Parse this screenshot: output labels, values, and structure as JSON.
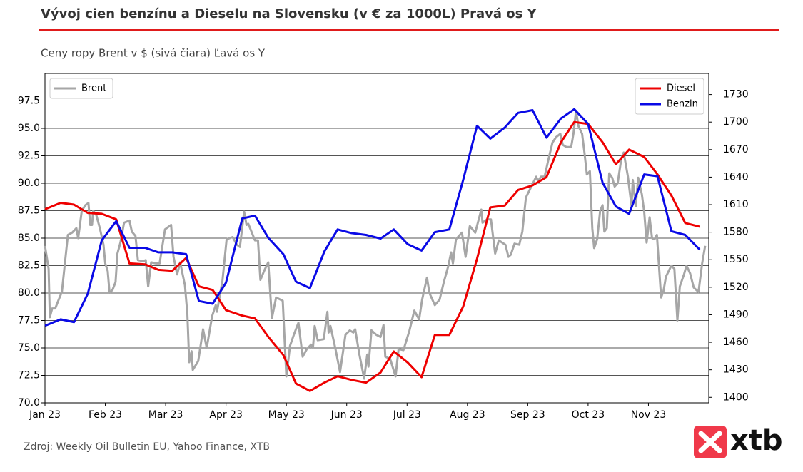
{
  "chart_data": {
    "type": "line",
    "title": "Vývoj cien benzínu a Dieselu na Slovensku (v € za 1000L) Pravá os Y",
    "subtitle": "Ceny ropy Brent v $ (sivá čiara) Ľavá os Y",
    "source": "Zdroj: Weekly Oil Bulletin EU, Yahoo Finance, XTB",
    "logo": "xtb",
    "xlim": [
      0,
      11
    ],
    "xticks": [
      {
        "value": 0,
        "label": "Jan 23"
      },
      {
        "value": 1,
        "label": "Feb 23"
      },
      {
        "value": 2,
        "label": "Mar 23"
      },
      {
        "value": 3,
        "label": "Apr 23"
      },
      {
        "value": 4,
        "label": "May 23"
      },
      {
        "value": 5,
        "label": "Jun 23"
      },
      {
        "value": 6,
        "label": "Jul 23"
      },
      {
        "value": 7,
        "label": "Aug 23"
      },
      {
        "value": 8,
        "label": "Sep 23"
      },
      {
        "value": 9,
        "label": "Oct 23"
      },
      {
        "value": 10,
        "label": "Nov 23"
      }
    ],
    "ylim": [
      70,
      100
    ],
    "yticks": [
      {
        "value": 70,
        "label": "70.0"
      },
      72.5,
      {
        "value": 75,
        "label": "75.0"
      },
      77.5,
      {
        "value": 80,
        "label": "80.0"
      },
      82.5,
      {
        "value": 85,
        "label": "85.0"
      },
      87.5,
      {
        "value": 90,
        "label": "90.0"
      },
      92.5,
      {
        "value": 95,
        "label": "95.0"
      },
      97.5
    ],
    "y2lim": [
      1394,
      1753
    ],
    "y2ticks": [
      1400,
      1430,
      1460,
      1490,
      1520,
      1550,
      1580,
      1610,
      1640,
      1670,
      1700,
      1730
    ],
    "grid": true,
    "legend": "upper left",
    "legend2": "upper right",
    "series": [
      {
        "name": "Brent",
        "color": "#a6a6a6",
        "axis": "y",
        "x": [
          0.0,
          0.06,
          0.08,
          0.12,
          0.17,
          0.22,
          0.28,
          0.33,
          0.38,
          0.45,
          0.52,
          0.55,
          0.61,
          0.67,
          0.72,
          0.75,
          0.78,
          0.8,
          0.85,
          0.91,
          0.97,
          1.0,
          1.04,
          1.07,
          1.12,
          1.17,
          1.2,
          1.25,
          1.31,
          1.4,
          1.44,
          1.5,
          1.54,
          1.63,
          1.67,
          1.71,
          1.76,
          1.84,
          1.9,
          1.99,
          2.09,
          2.13,
          2.19,
          2.24,
          2.32,
          2.36,
          2.39,
          2.43,
          2.45,
          2.54,
          2.62,
          2.68,
          2.77,
          2.83,
          2.85,
          2.94,
          3.01,
          3.11,
          3.18,
          3.23,
          3.3,
          3.34,
          3.37,
          3.48,
          3.53,
          3.57,
          3.63,
          3.7,
          3.76,
          3.83,
          3.94,
          4.0,
          4.06,
          4.13,
          4.2,
          4.27,
          4.34,
          4.41,
          4.44,
          4.47,
          4.52,
          4.62,
          4.68,
          4.7,
          4.73,
          4.81,
          4.89,
          4.98,
          5.05,
          5.11,
          5.14,
          5.21,
          5.29,
          5.34,
          5.36,
          5.41,
          5.49,
          5.56,
          5.61,
          5.64,
          5.72,
          5.81,
          5.86,
          5.94,
          6.04,
          6.12,
          6.2,
          6.25,
          6.33,
          6.37,
          6.46,
          6.54,
          6.61,
          6.68,
          6.73,
          6.76,
          6.81,
          6.91,
          6.97,
          7.04,
          7.13,
          7.23,
          7.25,
          7.32,
          7.39,
          7.46,
          7.52,
          7.63,
          7.68,
          7.72,
          7.78,
          7.86,
          7.91,
          7.97,
          8.06,
          8.14,
          8.17,
          8.22,
          8.28,
          8.34,
          8.41,
          8.47,
          8.54,
          8.58,
          8.64,
          8.72,
          8.76,
          8.8,
          8.84,
          8.9,
          8.94,
          8.98,
          9.03,
          9.07,
          9.1,
          9.15,
          9.2,
          9.24,
          9.27,
          9.31,
          9.35,
          9.4,
          9.44,
          9.49,
          9.55,
          9.59,
          9.66,
          9.72,
          9.74,
          9.79,
          9.83,
          9.89,
          9.93,
          9.97,
          10.02,
          10.06,
          10.1,
          10.14,
          10.21,
          10.25,
          10.29,
          10.38,
          10.43,
          10.48,
          10.52,
          10.59,
          10.63,
          10.69,
          10.75,
          10.83,
          10.89,
          10.94
        ],
        "values": [
          84.3,
          82.2,
          77.8,
          78.6,
          78.6,
          79.3,
          80.1,
          82.7,
          85.3,
          85.5,
          85.9,
          85.0,
          87.5,
          88.0,
          88.2,
          86.2,
          86.2,
          87.5,
          87.1,
          85.9,
          84.4,
          82.7,
          82.0,
          80.0,
          80.3,
          81.0,
          83.6,
          84.6,
          86.4,
          86.6,
          85.6,
          85.2,
          83.0,
          82.9,
          83.0,
          80.6,
          82.8,
          82.7,
          82.7,
          85.8,
          86.2,
          83.3,
          81.7,
          82.8,
          80.7,
          78.1,
          73.7,
          74.7,
          73.0,
          73.8,
          76.7,
          75.0,
          77.9,
          78.9,
          78.3,
          81.1,
          84.9,
          85.1,
          84.4,
          84.2,
          87.4,
          86.2,
          86.3,
          84.8,
          84.8,
          81.2,
          82.0,
          82.8,
          77.7,
          79.6,
          79.3,
          72.4,
          75.2,
          76.3,
          77.3,
          74.2,
          74.9,
          75.3,
          75.0,
          77.0,
          75.7,
          75.8,
          78.3,
          76.4,
          77.0,
          75.0,
          72.8,
          76.2,
          76.6,
          76.4,
          76.7,
          74.4,
          72.2,
          74.4,
          73.3,
          76.6,
          76.2,
          76.0,
          77.1,
          74.2,
          74.0,
          72.4,
          74.9,
          74.8,
          76.6,
          78.4,
          77.6,
          79.4,
          81.4,
          80.0,
          78.9,
          79.4,
          81.0,
          82.4,
          83.7,
          82.7,
          84.9,
          85.5,
          83.3,
          86.1,
          85.5,
          87.6,
          86.4,
          86.7,
          86.7,
          83.6,
          84.8,
          84.4,
          83.3,
          83.5,
          84.5,
          84.4,
          85.6,
          88.7,
          89.7,
          90.6,
          90.2,
          90.6,
          90.6,
          92.1,
          93.7,
          94.2,
          94.5,
          93.5,
          93.3,
          93.3,
          94.6,
          96.6,
          95.2,
          94.5,
          92.8,
          90.8,
          91.1,
          85.9,
          84.1,
          84.9,
          87.5,
          88.0,
          85.6,
          85.9,
          90.9,
          90.5,
          89.7,
          90.0,
          92.2,
          92.8,
          90.6,
          87.9,
          90.3,
          87.9,
          90.5,
          89.0,
          87.4,
          84.6,
          86.9,
          85.0,
          84.9,
          85.3,
          79.6,
          80.2,
          81.5,
          82.5,
          82.2,
          77.5,
          80.6,
          81.7,
          82.5,
          81.8,
          80.5,
          80.1,
          82.7,
          84.3
        ]
      },
      {
        "name": "Diesel",
        "color": "#ee0000",
        "axis": "y2",
        "x": [
          0,
          0.26,
          0.48,
          0.71,
          0.94,
          1.18,
          1.4,
          1.66,
          1.88,
          2.11,
          2.34,
          2.55,
          2.78,
          3.0,
          3.27,
          3.48,
          3.7,
          3.95,
          4.16,
          4.39,
          4.63,
          4.85,
          5.08,
          5.32,
          5.56,
          5.78,
          6.01,
          6.24,
          6.46,
          6.7,
          6.93,
          7.16,
          7.38,
          7.62,
          7.84,
          8.08,
          8.31,
          8.55,
          8.77,
          9.0,
          9.24,
          9.46,
          9.68,
          9.93,
          10.15,
          10.38,
          10.61,
          10.85
        ],
        "values": [
          1605,
          1612,
          1610,
          1601,
          1600,
          1594,
          1546,
          1545,
          1539,
          1538,
          1552,
          1521,
          1517,
          1495,
          1489,
          1486,
          1466,
          1446,
          1415,
          1407,
          1416,
          1423,
          1419,
          1416,
          1427,
          1450,
          1438,
          1422,
          1468,
          1468,
          1499,
          1551,
          1607,
          1609,
          1626,
          1631,
          1640,
          1678,
          1700,
          1698,
          1678,
          1654,
          1670,
          1662,
          1643,
          1620,
          1590,
          1586
        ]
      },
      {
        "name": "Benzin",
        "color": "#0a0ae6",
        "axis": "y2",
        "x": [
          0,
          0.26,
          0.48,
          0.71,
          0.94,
          1.18,
          1.4,
          1.66,
          1.88,
          2.11,
          2.34,
          2.55,
          2.78,
          3.0,
          3.27,
          3.48,
          3.7,
          3.95,
          4.16,
          4.39,
          4.63,
          4.85,
          5.08,
          5.32,
          5.56,
          5.78,
          6.01,
          6.24,
          6.46,
          6.7,
          6.93,
          7.16,
          7.38,
          7.62,
          7.84,
          8.08,
          8.31,
          8.55,
          8.77,
          9.0,
          9.24,
          9.46,
          9.68,
          9.93,
          10.15,
          10.38,
          10.61,
          10.85
        ],
        "values": [
          1478,
          1485,
          1482,
          1513,
          1571,
          1592,
          1563,
          1563,
          1558,
          1558,
          1556,
          1505,
          1502,
          1525,
          1595,
          1598,
          1574,
          1556,
          1526,
          1519,
          1559,
          1583,
          1579,
          1577,
          1573,
          1583,
          1567,
          1560,
          1580,
          1583,
          1637,
          1696,
          1682,
          1694,
          1710,
          1713,
          1683,
          1704,
          1714,
          1698,
          1634,
          1608,
          1600,
          1643,
          1641,
          1581,
          1577,
          1561
        ]
      }
    ]
  }
}
